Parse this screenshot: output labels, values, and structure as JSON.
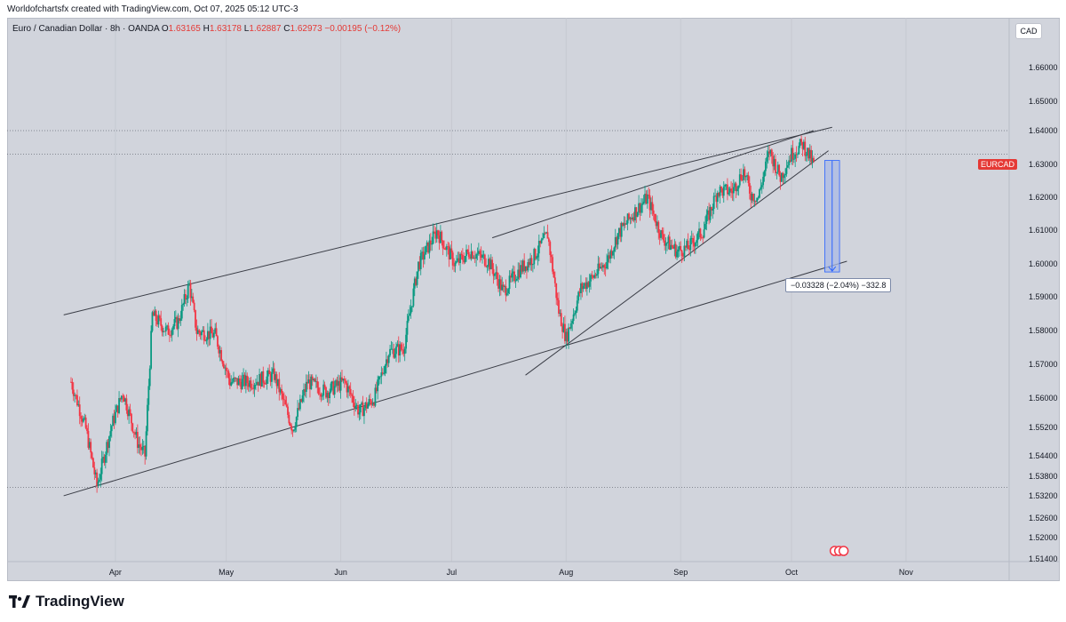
{
  "header": {
    "credit": "Worldofchartsfx created with TradingView.com, Oct 07, 2025 05:12 UTC-3"
  },
  "legend": {
    "name": "Euro / Canadian Dollar · 8h · OANDA",
    "o_label": "O",
    "o": "1.63165",
    "h_label": "H",
    "h": "1.63178",
    "l_label": "L",
    "l": "1.62887",
    "c_label": "C",
    "c": "1.62973",
    "change": "−0.00195 (−0.12%)"
  },
  "currency_button": "CAD",
  "symbol_tag": "EURCAD",
  "measure_label": "−0.03328 (−2.04%) −332.8",
  "brand": "TradingView",
  "colors": {
    "up": "#089981",
    "down": "#f23645",
    "background": "#d1d4dc",
    "measure_fill": "#aab9e4",
    "measure_line": "#2962ff"
  },
  "chart_data": {
    "type": "candlestick",
    "symbol": "EURCAD",
    "timeframe": "8h",
    "x_range": [
      "2025-03-20",
      "2025-11-05"
    ],
    "x_ticks": [
      {
        "label": "Apr",
        "date": "2025-04-01"
      },
      {
        "label": "May",
        "date": "2025-05-01"
      },
      {
        "label": "Jun",
        "date": "2025-06-01"
      },
      {
        "label": "Jul",
        "date": "2025-07-01"
      },
      {
        "label": "Aug",
        "date": "2025-08-01"
      },
      {
        "label": "Sep",
        "date": "2025-09-01"
      },
      {
        "label": "Oct",
        "date": "2025-10-01"
      },
      {
        "label": "Nov",
        "date": "2025-11-01"
      }
    ],
    "y_ticks": [
      "1.66000",
      "1.65000",
      "1.64000",
      "1.63000",
      "1.62000",
      "1.61000",
      "1.60000",
      "1.59000",
      "1.58000",
      "1.57000",
      "1.56000",
      "1.55200",
      "1.54400",
      "1.53800",
      "1.53200",
      "1.52600",
      "1.52000",
      "1.51400"
    ],
    "last_price": 1.62973,
    "close_path": [
      [
        "2025-03-20",
        1.565
      ],
      [
        "2025-03-24",
        1.551
      ],
      [
        "2025-03-27",
        1.534
      ],
      [
        "2025-03-31",
        1.552
      ],
      [
        "2025-04-03",
        1.562
      ],
      [
        "2025-04-07",
        1.547
      ],
      [
        "2025-04-09",
        1.543
      ],
      [
        "2025-04-11",
        1.585
      ],
      [
        "2025-04-15",
        1.58
      ],
      [
        "2025-04-18",
        1.583
      ],
      [
        "2025-04-21",
        1.594
      ],
      [
        "2025-04-23",
        1.58
      ],
      [
        "2025-04-28",
        1.579
      ],
      [
        "2025-05-02",
        1.565
      ],
      [
        "2025-05-08",
        1.565
      ],
      [
        "2025-05-14",
        1.567
      ],
      [
        "2025-05-19",
        1.551
      ],
      [
        "2025-05-23",
        1.565
      ],
      [
        "2025-05-28",
        1.562
      ],
      [
        "2025-06-02",
        1.565
      ],
      [
        "2025-06-06",
        1.556
      ],
      [
        "2025-06-10",
        1.56
      ],
      [
        "2025-06-14",
        1.574
      ],
      [
        "2025-06-18",
        1.575
      ],
      [
        "2025-06-22",
        1.6
      ],
      [
        "2025-06-27",
        1.61
      ],
      [
        "2025-07-02",
        1.6
      ],
      [
        "2025-07-06",
        1.604
      ],
      [
        "2025-07-11",
        1.601
      ],
      [
        "2025-07-15",
        1.592
      ],
      [
        "2025-07-19",
        1.598
      ],
      [
        "2025-07-23",
        1.602
      ],
      [
        "2025-07-27",
        1.609
      ],
      [
        "2025-07-30",
        1.586
      ],
      [
        "2025-08-01",
        1.578
      ],
      [
        "2025-08-05",
        1.593
      ],
      [
        "2025-08-08",
        1.596
      ],
      [
        "2025-08-12",
        1.601
      ],
      [
        "2025-08-15",
        1.609
      ],
      [
        "2025-08-19",
        1.615
      ],
      [
        "2025-08-23",
        1.62
      ],
      [
        "2025-08-27",
        1.608
      ],
      [
        "2025-08-31",
        1.604
      ],
      [
        "2025-09-03",
        1.605
      ],
      [
        "2025-09-07",
        1.61
      ],
      [
        "2025-09-11",
        1.622
      ],
      [
        "2025-09-15",
        1.622
      ],
      [
        "2025-09-18",
        1.628
      ],
      [
        "2025-09-20",
        1.621
      ],
      [
        "2025-09-22",
        1.62
      ],
      [
        "2025-09-25",
        1.634
      ],
      [
        "2025-09-28",
        1.626
      ],
      [
        "2025-10-01",
        1.633
      ],
      [
        "2025-10-04",
        1.636
      ],
      [
        "2025-10-06",
        1.632
      ],
      [
        "2025-10-07",
        1.62973
      ]
    ],
    "trendlines": [
      {
        "name": "upper-channel",
        "from": [
          "2025-03-18",
          1.585
        ],
        "to": [
          "2025-10-12",
          1.641
        ]
      },
      {
        "name": "lower-channel",
        "from": [
          "2025-03-18",
          1.531
        ],
        "to": [
          "2025-10-16",
          1.601
        ]
      },
      {
        "name": "wedge-upper",
        "from": [
          "2025-07-12",
          1.608
        ],
        "to": [
          "2025-10-07",
          1.64
        ]
      },
      {
        "name": "wedge-lower",
        "from": [
          "2025-07-21",
          1.567
        ],
        "to": [
          "2025-10-11",
          1.634
        ]
      }
    ],
    "horizontal_levels": [
      1.64,
      1.633,
      1.5335
    ],
    "measure": {
      "from_date": "2025-10-10",
      "to_date": "2025-10-14",
      "start": 1.6311,
      "end": 1.5978,
      "change": -0.03328,
      "percent": -2.04,
      "pips": -332.8
    }
  }
}
